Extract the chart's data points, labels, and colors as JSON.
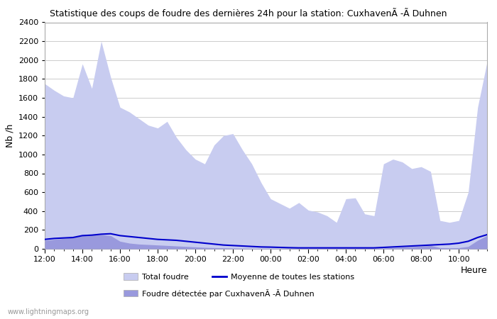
{
  "title": "Statistique des coups de foudre des dernières 24h pour la station: CuxhavenÃ -Ã Duhnen",
  "ylabel": "Nb /h",
  "xlabel": "Heure",
  "watermark": "www.lightningmaps.org",
  "ylim": [
    0,
    2400
  ],
  "yticks": [
    0,
    200,
    400,
    600,
    800,
    1000,
    1200,
    1400,
    1600,
    1800,
    2000,
    2200,
    2400
  ],
  "xtick_labels": [
    "12:00",
    "14:00",
    "16:00",
    "18:00",
    "20:00",
    "22:00",
    "00:00",
    "02:00",
    "04:00",
    "06:00",
    "08:00",
    "10:00"
  ],
  "legend_total": "Total foudre",
  "legend_detected": "Foudre détectée par CuxhavenÃ -Ã Duhnen",
  "legend_moyenne": "Moyenne de toutes les stations",
  "fill_color_total": "#c8ccf0",
  "fill_color_detected": "#9999dd",
  "line_color_moyenne": "#0000cc",
  "background_color": "#ffffff",
  "grid_color": "#cccccc",
  "total_foudre": [
    1750,
    1680,
    1620,
    1600,
    1960,
    1700,
    2200,
    1820,
    1500,
    1450,
    1380,
    1310,
    1280,
    1350,
    1180,
    1050,
    950,
    900,
    1100,
    1200,
    1220,
    1050,
    900,
    700,
    530,
    480,
    430,
    490,
    410,
    390,
    350,
    280,
    530,
    540,
    370,
    350,
    900,
    950,
    920,
    850,
    870,
    820,
    300,
    280,
    300,
    600,
    1500,
    1980
  ],
  "detected_foudre": [
    90,
    100,
    110,
    120,
    140,
    145,
    150,
    140,
    80,
    60,
    50,
    45,
    40,
    35,
    30,
    25,
    20,
    15,
    12,
    10,
    8,
    6,
    5,
    4,
    4,
    3,
    3,
    3,
    3,
    3,
    3,
    3,
    3,
    3,
    3,
    3,
    8,
    12,
    18,
    22,
    28,
    35,
    12,
    10,
    12,
    25,
    90,
    140
  ],
  "moyenne": [
    100,
    110,
    115,
    120,
    140,
    145,
    155,
    160,
    140,
    130,
    120,
    110,
    100,
    95,
    90,
    80,
    70,
    60,
    50,
    40,
    35,
    30,
    25,
    20,
    18,
    15,
    12,
    10,
    10,
    10,
    10,
    10,
    10,
    10,
    10,
    10,
    15,
    20,
    25,
    30,
    35,
    40,
    45,
    50,
    60,
    80,
    120,
    150
  ]
}
